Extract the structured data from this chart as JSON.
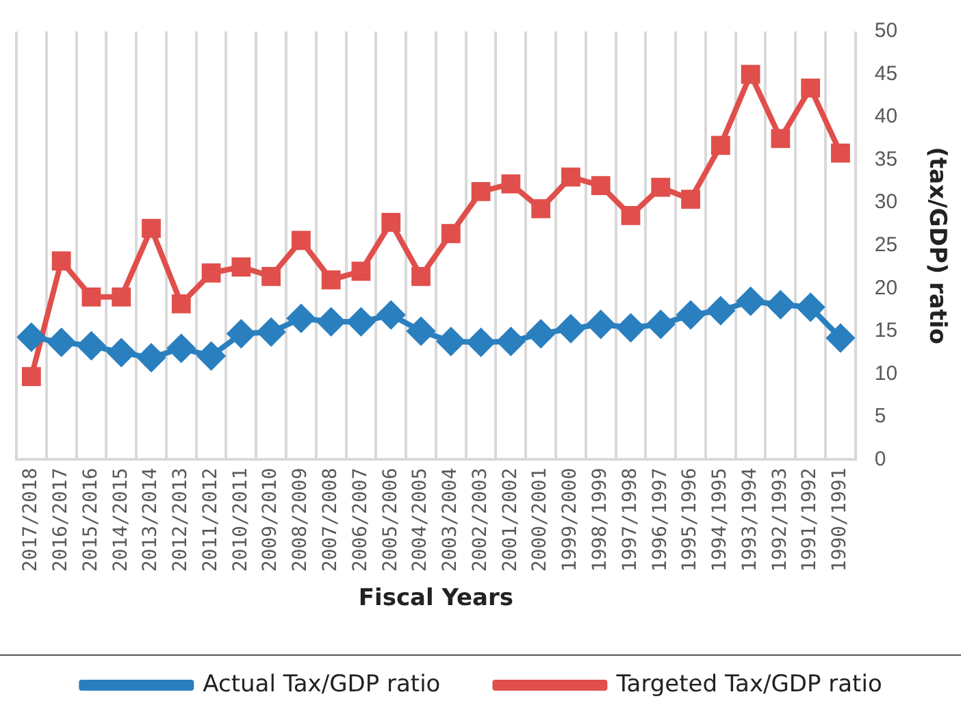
{
  "chart_data": {
    "type": "line",
    "xlabel": "Fiscal Years",
    "ylabel": "(tax/GDP) ratio",
    "categories": [
      "2017/2018",
      "2016/2017",
      "2015/2016",
      "2014/2015",
      "2013/2014",
      "2012/2013",
      "2011/2012",
      "2010/2011",
      "2009/2010",
      "2008/2009",
      "2007/2008",
      "2006/2007",
      "2005/2006",
      "2004/2005",
      "2003/2004",
      "2002/2003",
      "2001/2002",
      "2000/2001",
      "1999/2000",
      "1998/1999",
      "1997/1998",
      "1996/1997",
      "1995/1996",
      "1994/1995",
      "1993/1994",
      "1992/1993",
      "1991/1992",
      "1990/1991"
    ],
    "series": [
      {
        "name": "Actual Tax/GDP ratio",
        "color": "#2a7fbf",
        "marker": "diamond",
        "values": [
          14.3,
          13.7,
          13.3,
          12.5,
          11.9,
          13,
          12.1,
          14.7,
          14.9,
          16.5,
          16.1,
          16.1,
          16.9,
          15,
          13.8,
          13.7,
          13.8,
          14.7,
          15.3,
          15.8,
          15.4,
          15.8,
          16.9,
          17.4,
          18.5,
          18.1,
          17.8,
          14.2
        ]
      },
      {
        "name": "Targeted Tax/GDP ratio",
        "color": "#e04f4b",
        "marker": "square",
        "values": [
          9.7,
          23.2,
          19,
          19,
          27,
          18.2,
          21.8,
          22.5,
          21.4,
          25.6,
          21,
          22,
          27.7,
          21.4,
          26.4,
          31.3,
          32.2,
          29.3,
          33,
          32,
          28.5,
          31.8,
          30.4,
          36.7,
          45,
          37.5,
          43.4,
          35.8
        ]
      }
    ],
    "ylim": [
      0,
      50
    ],
    "yticks": [
      0,
      5,
      10,
      15,
      20,
      25,
      30,
      35,
      40,
      45,
      50
    ],
    "grid": "x",
    "legend": "bottom",
    "line_style": "solid"
  }
}
